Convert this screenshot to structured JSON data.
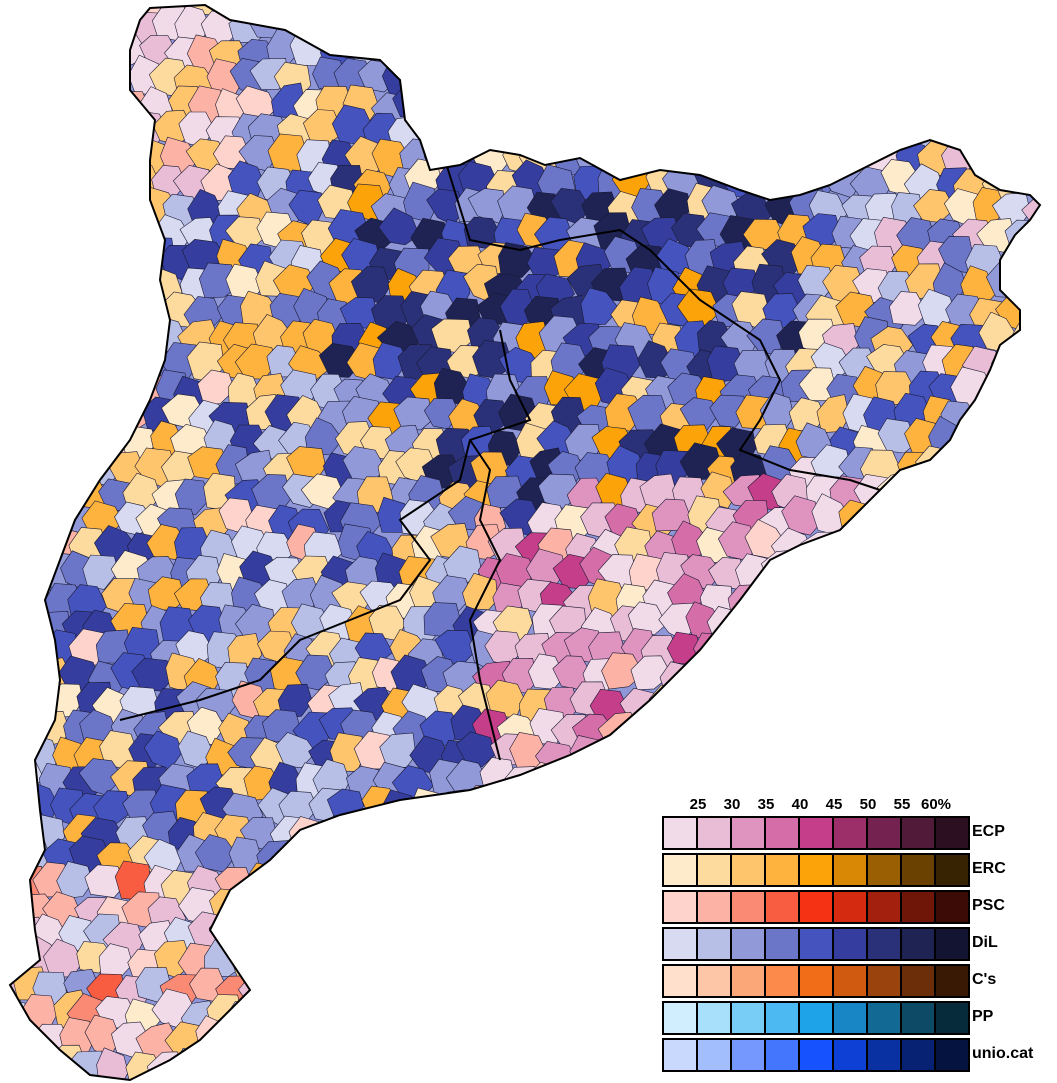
{
  "legend": {
    "ticks": [
      "25",
      "30",
      "35",
      "40",
      "45",
      "50",
      "55",
      "60%"
    ],
    "parties": [
      {
        "name": "ECP",
        "colors": [
          "#f2dbe8",
          "#e9bdd6",
          "#df93bf",
          "#d56ea8",
          "#c53e8a",
          "#9c2e6a",
          "#742350",
          "#511a39",
          "#2c0f20"
        ]
      },
      {
        "name": "ERC",
        "colors": [
          "#feebcc",
          "#fddb9e",
          "#fec56d",
          "#fdb33e",
          "#fca309",
          "#d98805",
          "#9a5f03",
          "#6b4102",
          "#372301"
        ]
      },
      {
        "name": "PSC",
        "colors": [
          "#fdd3cb",
          "#fcb2a4",
          "#fb8a74",
          "#f85d42",
          "#f63215",
          "#d42a10",
          "#a2200d",
          "#6f1609",
          "#3c0b05"
        ]
      },
      {
        "name": "DiL",
        "colors": [
          "#d7daf0",
          "#b8bfe7",
          "#9199d9",
          "#6c76c9",
          "#4553bf",
          "#353e9e",
          "#2a3178",
          "#1e2354",
          "#121431"
        ]
      },
      {
        "name": "C's",
        "colors": [
          "#fee0cd",
          "#fdc6a6",
          "#fca777",
          "#fb8a4b",
          "#f16d18",
          "#cf5a10",
          "#9b430c",
          "#6b2e08",
          "#3a1904"
        ]
      },
      {
        "name": "PP",
        "colors": [
          "#d0eefd",
          "#a8e0fb",
          "#78cdf7",
          "#4cb9f2",
          "#1fa3e8",
          "#1886c4",
          "#126993",
          "#0c4a66",
          "#062b3b"
        ]
      },
      {
        "name": "unio.cat",
        "colors": [
          "#c9d9fd",
          "#a3befd",
          "#7598fe",
          "#4375fd",
          "#1652fe",
          "#0e40d6",
          "#0a31a2",
          "#072273",
          "#041340"
        ]
      }
    ]
  }
}
